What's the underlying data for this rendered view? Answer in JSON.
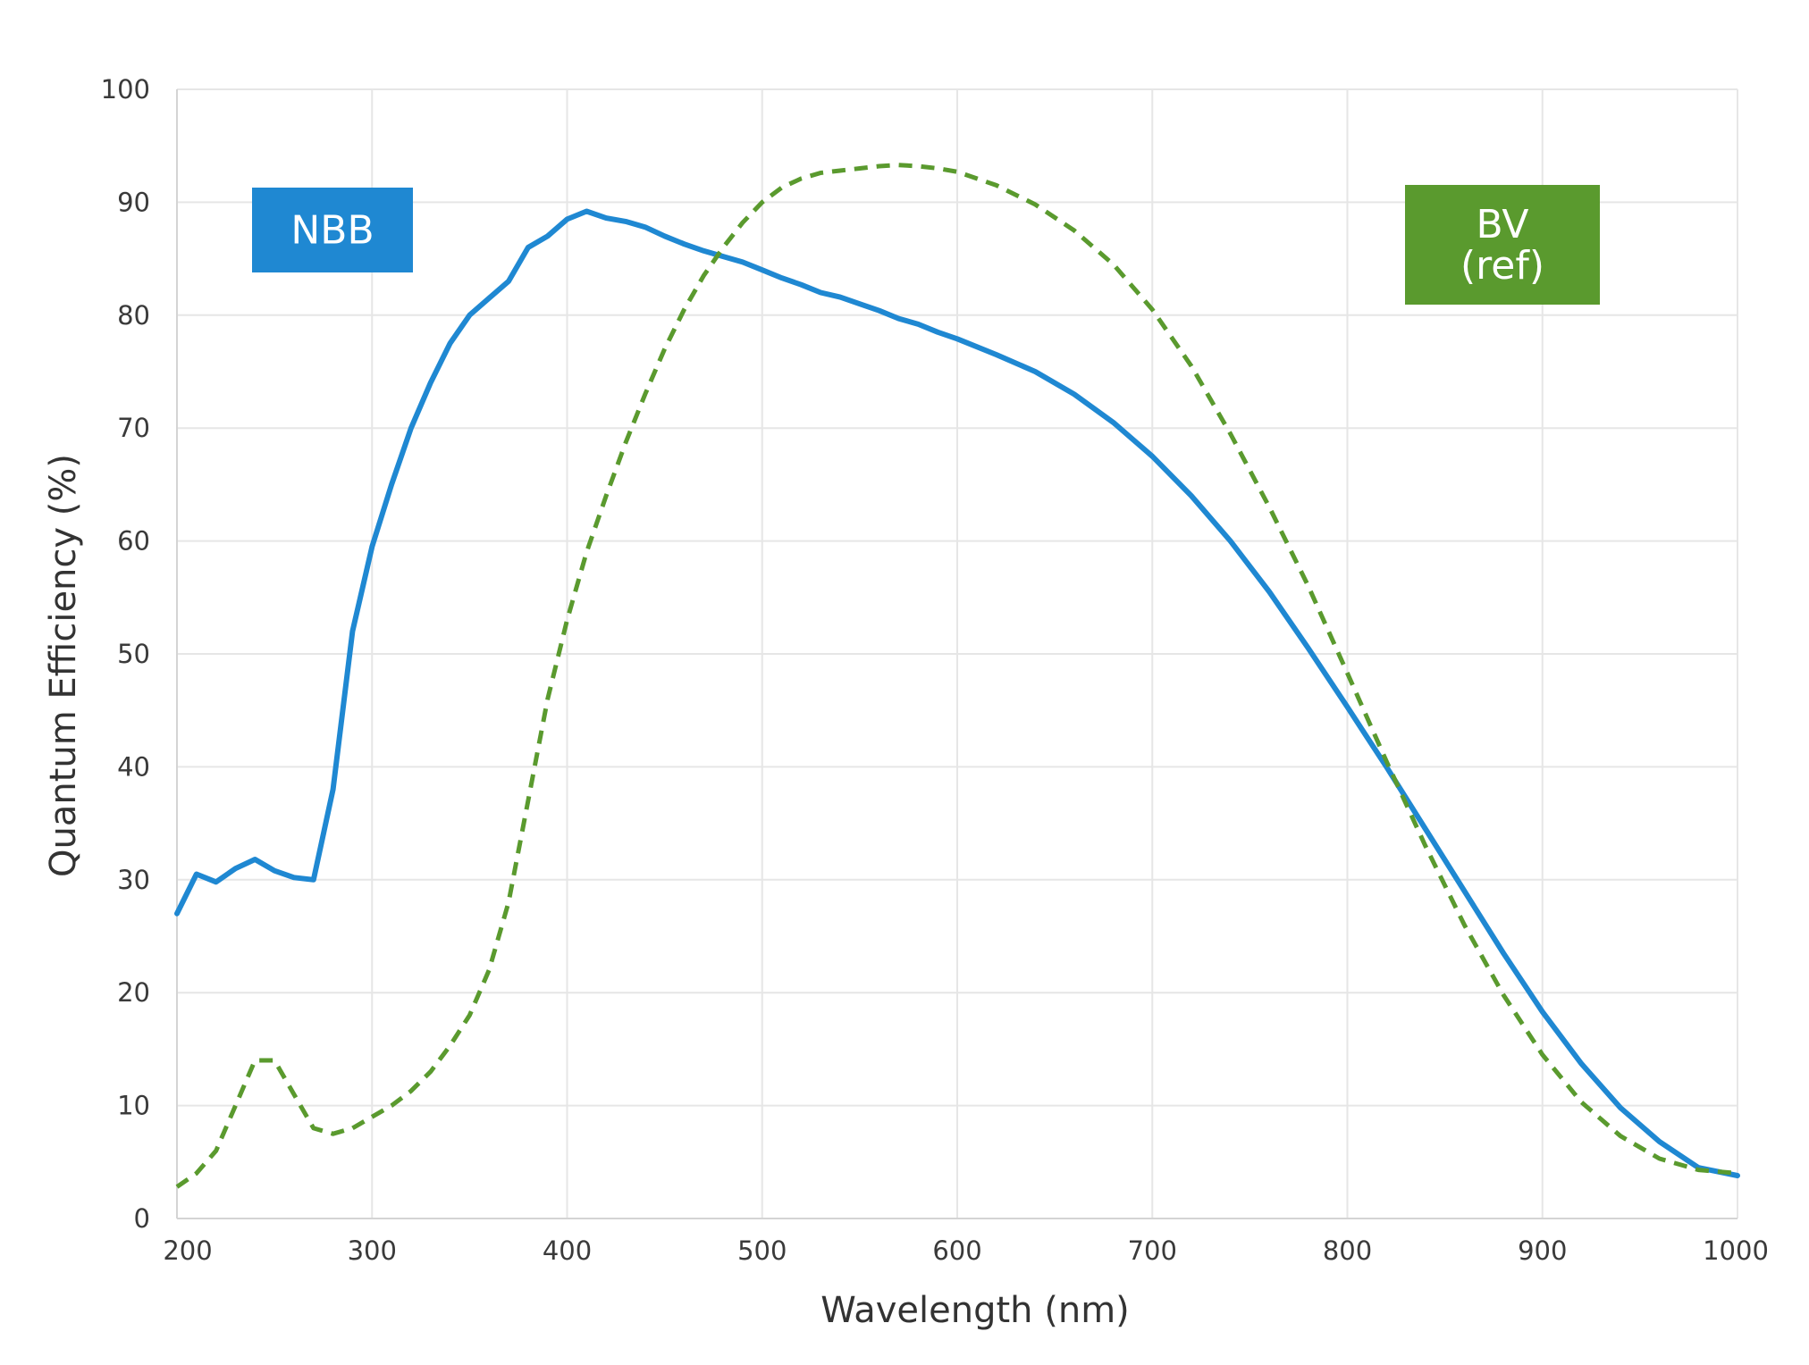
{
  "chart_data": {
    "type": "line",
    "title": "",
    "xlabel": "Wavelength (nm)",
    "ylabel": "Quantum Efficiency (%)",
    "xlim": [
      200,
      1000
    ],
    "ylim": [
      0,
      100
    ],
    "xticks": [
      200,
      300,
      400,
      500,
      600,
      700,
      800,
      900,
      1000
    ],
    "yticks": [
      0,
      10,
      20,
      30,
      40,
      50,
      60,
      70,
      80,
      90,
      100
    ],
    "grid": true,
    "series": [
      {
        "name": "NBB",
        "label_lines": [
          "NBB"
        ],
        "color": "#1f88d2",
        "style": "solid",
        "legend_position": "upper-left",
        "x": [
          200,
          210,
          220,
          230,
          240,
          250,
          260,
          270,
          280,
          290,
          300,
          310,
          320,
          330,
          340,
          350,
          360,
          370,
          380,
          390,
          400,
          410,
          420,
          430,
          440,
          450,
          460,
          470,
          480,
          490,
          500,
          510,
          520,
          530,
          540,
          550,
          560,
          570,
          580,
          590,
          600,
          620,
          640,
          660,
          680,
          700,
          720,
          740,
          760,
          780,
          800,
          820,
          840,
          860,
          880,
          900,
          920,
          940,
          960,
          980,
          1000
        ],
        "values": [
          27,
          30.5,
          29.8,
          31,
          31.8,
          30.8,
          30.2,
          30,
          38,
          52,
          59.5,
          65,
          70,
          74,
          77.5,
          80,
          81.5,
          83,
          86,
          87,
          88.5,
          89.2,
          88.6,
          88.3,
          87.8,
          87,
          86.3,
          85.7,
          85.2,
          84.7,
          84,
          83.3,
          82.7,
          82,
          81.6,
          81,
          80.4,
          79.7,
          79.2,
          78.5,
          77.9,
          76.5,
          75,
          73,
          70.5,
          67.5,
          64,
          60,
          55.5,
          50.5,
          45.3,
          40,
          34.5,
          29,
          23.5,
          18.3,
          13.7,
          9.8,
          6.8,
          4.5,
          3.8
        ]
      },
      {
        "name": "BV (ref)",
        "label_lines": [
          "BV",
          "(ref)"
        ],
        "color": "#5a9a2e",
        "style": "dashed",
        "legend_position": "upper-right",
        "x": [
          200,
          210,
          220,
          230,
          240,
          250,
          260,
          270,
          280,
          290,
          300,
          310,
          320,
          330,
          340,
          350,
          360,
          370,
          380,
          390,
          400,
          410,
          420,
          430,
          440,
          450,
          460,
          470,
          480,
          490,
          500,
          510,
          520,
          530,
          540,
          550,
          560,
          570,
          580,
          590,
          600,
          620,
          640,
          660,
          680,
          700,
          720,
          740,
          760,
          780,
          800,
          820,
          840,
          860,
          880,
          900,
          920,
          940,
          960,
          980,
          1000
        ],
        "values": [
          2.8,
          4,
          6,
          10,
          14,
          14,
          11,
          8,
          7.5,
          8,
          9,
          10,
          11.3,
          13,
          15.3,
          18,
          22,
          28,
          37,
          46,
          53,
          59,
          64,
          68.7,
          73,
          77,
          80.5,
          83.5,
          86,
          88.2,
          90,
          91.3,
          92.1,
          92.6,
          92.8,
          93,
          93.2,
          93.3,
          93.2,
          93,
          92.7,
          91.5,
          89.8,
          87.5,
          84.5,
          80.5,
          75.5,
          69.5,
          63,
          56,
          48.3,
          40.5,
          33,
          26,
          19.8,
          14.5,
          10.3,
          7.3,
          5.3,
          4.3,
          4
        ]
      }
    ]
  }
}
